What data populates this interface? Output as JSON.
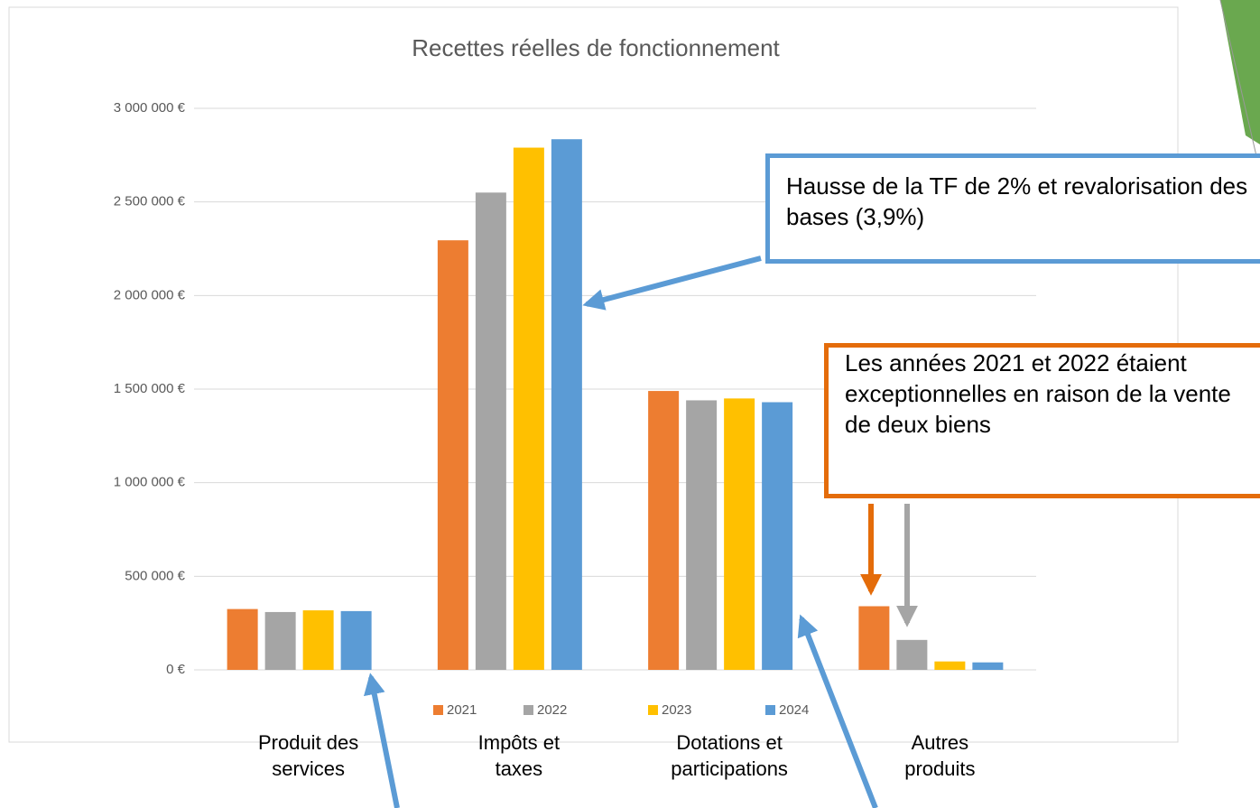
{
  "chart_data": {
    "type": "bar",
    "title": "Recettes réelles de fonctionnement",
    "categories": [
      "Produit des services",
      "Impôts et taxes",
      "Dotations et participations",
      "Autres produits"
    ],
    "series": [
      {
        "name": "2021",
        "color": "#ED7D31",
        "values": [
          325000,
          2295000,
          1490000,
          340000
        ]
      },
      {
        "name": "2022",
        "color": "#A5A5A5",
        "values": [
          309000,
          2550000,
          1440000,
          160000
        ]
      },
      {
        "name": "2023",
        "color": "#FFC000",
        "values": [
          318000,
          2790000,
          1450000,
          45000
        ]
      },
      {
        "name": "2024",
        "color": "#5B9BD5",
        "values": [
          314000,
          2835000,
          1430000,
          40000
        ]
      }
    ],
    "ylim": [
      0,
      3000000
    ],
    "yticks": [
      {
        "value": 0,
        "label": "0 €"
      },
      {
        "value": 500000,
        "label": "500 000 €"
      },
      {
        "value": 1000000,
        "label": "1 000 000 €"
      },
      {
        "value": 1500000,
        "label": "1 500 000 €"
      },
      {
        "value": 2000000,
        "label": "2 000 000 €"
      },
      {
        "value": 2500000,
        "label": "2 500 000 €"
      },
      {
        "value": 3000000,
        "label": "3 000 000 €"
      }
    ],
    "grid": true,
    "legend": "bottom",
    "annotations": [
      "Hausse de la TF de 2% et revalorisation des bases (3,9%)",
      "Les années 2021 et 2022 étaient exceptionnelles en raison de la vente de deux biens"
    ]
  }
}
